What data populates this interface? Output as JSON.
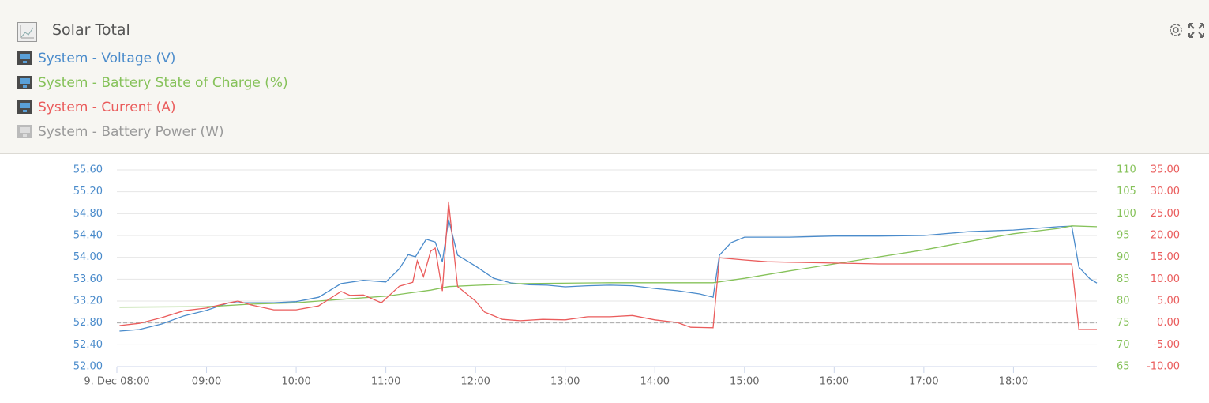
{
  "chart_data": {
    "type": "line",
    "title": "Solar Total",
    "xlim": [
      8,
      18.93
    ],
    "xticks": [
      {
        "value": 8,
        "label": "9. Dec 08:00"
      },
      {
        "value": 9,
        "label": "09:00"
      },
      {
        "value": 10,
        "label": "10:00"
      },
      {
        "value": 11,
        "label": "11:00"
      },
      {
        "value": 12,
        "label": "12:00"
      },
      {
        "value": 13,
        "label": "13:00"
      },
      {
        "value": 14,
        "label": "14:00"
      },
      {
        "value": 15,
        "label": "15:00"
      },
      {
        "value": 16,
        "label": "16:00"
      },
      {
        "value": 17,
        "label": "17:00"
      },
      {
        "value": 18,
        "label": "18:00"
      }
    ],
    "ylim": [
      52,
      55.6
    ],
    "yticks": [
      {
        "value": 52,
        "label": "52.00"
      },
      {
        "value": 52.4,
        "label": "52.40"
      },
      {
        "value": 52.8,
        "label": "52.80"
      },
      {
        "value": 53.2,
        "label": "53.20"
      },
      {
        "value": 53.6,
        "label": "53.60"
      },
      {
        "value": 54,
        "label": "54.00"
      },
      {
        "value": 54.4,
        "label": "54.40"
      },
      {
        "value": 54.8,
        "label": "54.80"
      },
      {
        "value": 55.2,
        "label": "55.20"
      },
      {
        "value": 55.6,
        "label": "55.60"
      }
    ],
    "y2lim": [
      65,
      110
    ],
    "y2ticks": [
      65,
      70,
      75,
      80,
      85,
      90,
      95,
      100,
      105,
      110
    ],
    "y3lim": [
      -10,
      35
    ],
    "y3ticks": [
      {
        "value": -10,
        "label": "-10.00"
      },
      {
        "value": -5,
        "label": "-5.00"
      },
      {
        "value": 0,
        "label": "0.00"
      },
      {
        "value": 5,
        "label": "5.00"
      },
      {
        "value": 10,
        "label": "10.00"
      },
      {
        "value": 15,
        "label": "15.00"
      },
      {
        "value": 20,
        "label": "20.00"
      },
      {
        "value": 25,
        "label": "25.00"
      },
      {
        "value": 30,
        "label": "30.00"
      },
      {
        "value": 35,
        "label": "35.00"
      }
    ],
    "grid": true,
    "series": [
      {
        "name": "System - Voltage (V)",
        "color": "#4a8bcb",
        "axis": "y",
        "x": [
          8.03,
          8.25,
          8.5,
          8.75,
          9.0,
          9.25,
          9.5,
          9.75,
          10.0,
          10.25,
          10.5,
          10.75,
          11.0,
          11.15,
          11.25,
          11.33,
          11.45,
          11.55,
          11.63,
          11.7,
          11.8,
          12.0,
          12.2,
          12.4,
          12.6,
          12.8,
          13.0,
          13.25,
          13.5,
          13.75,
          14.0,
          14.25,
          14.5,
          14.65,
          14.72,
          14.85,
          15.0,
          15.5,
          16.0,
          16.5,
          17.0,
          17.5,
          18.0,
          18.5,
          18.65,
          18.73,
          18.85,
          18.93
        ],
        "values": [
          52.65,
          52.68,
          52.78,
          52.93,
          53.03,
          53.17,
          53.17,
          53.17,
          53.19,
          53.27,
          53.52,
          53.58,
          53.55,
          53.79,
          54.05,
          54.01,
          54.33,
          54.28,
          53.92,
          54.69,
          54.04,
          53.84,
          53.62,
          53.53,
          53.5,
          53.49,
          53.46,
          53.48,
          53.49,
          53.48,
          53.43,
          53.39,
          53.33,
          53.27,
          54.04,
          54.27,
          54.37,
          54.37,
          54.39,
          54.39,
          54.4,
          54.47,
          54.5,
          54.56,
          54.57,
          53.82,
          53.61,
          53.53
        ]
      },
      {
        "name": "System - Battery State of Charge (%)",
        "color": "#86c25a",
        "axis": "y2",
        "x": [
          8.03,
          9.0,
          9.5,
          10.0,
          10.5,
          11.0,
          11.25,
          11.5,
          11.7,
          12.0,
          12.5,
          13.5,
          14.65,
          15.0,
          15.5,
          16.0,
          16.5,
          17.0,
          17.5,
          18.0,
          18.5,
          18.65,
          18.93
        ],
        "values": [
          78.6,
          78.7,
          79.3,
          79.6,
          80.4,
          81.1,
          81.8,
          82.5,
          83.3,
          83.6,
          84.0,
          84.2,
          84.2,
          85.2,
          86.9,
          88.5,
          90.1,
          91.7,
          93.6,
          95.4,
          96.6,
          97.2,
          97.0
        ]
      },
      {
        "name": "System - Current (A)",
        "color": "#ea5c5c",
        "axis": "y3",
        "x": [
          8.03,
          8.25,
          8.5,
          8.75,
          9.0,
          9.25,
          9.35,
          9.5,
          9.75,
          10.0,
          10.25,
          10.5,
          10.6,
          10.75,
          10.95,
          11.15,
          11.3,
          11.35,
          11.42,
          11.5,
          11.55,
          11.63,
          11.7,
          11.8,
          12.0,
          12.1,
          12.3,
          12.5,
          12.75,
          13.0,
          13.25,
          13.5,
          13.75,
          14.0,
          14.25,
          14.4,
          14.65,
          14.72,
          15.0,
          15.25,
          15.5,
          16.0,
          16.5,
          17.0,
          17.5,
          18.0,
          18.5,
          18.65,
          18.73,
          18.93
        ],
        "values": [
          -0.6,
          -0.1,
          1.2,
          2.8,
          3.4,
          4.6,
          5.0,
          4.1,
          3.0,
          3.0,
          3.9,
          7.2,
          6.3,
          6.4,
          4.6,
          8.4,
          9.3,
          14.2,
          10.6,
          16.4,
          17.1,
          7.3,
          27.6,
          8.3,
          5.0,
          2.5,
          0.8,
          0.5,
          0.8,
          0.7,
          1.4,
          1.4,
          1.7,
          0.7,
          0.1,
          -1.0,
          -1.1,
          14.9,
          14.4,
          14.0,
          13.9,
          13.7,
          13.5,
          13.5,
          13.5,
          13.5,
          13.5,
          13.5,
          -1.5,
          -1.5
        ]
      },
      {
        "name": "System - Battery Power (W)",
        "color": "#9a9a9a",
        "visible": false
      }
    ]
  }
}
